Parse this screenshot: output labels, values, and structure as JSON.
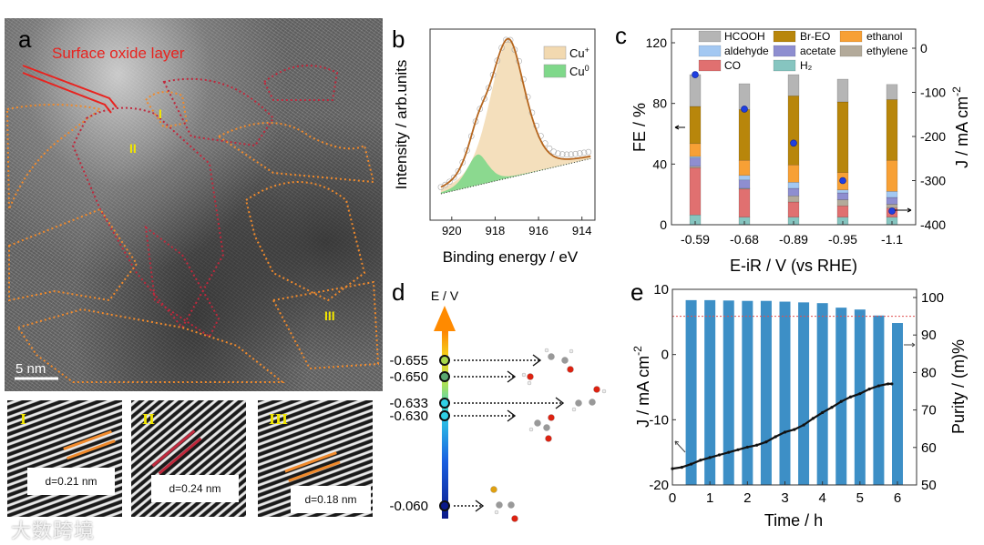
{
  "panel_labels": {
    "a": "a",
    "b": "b",
    "c": "c",
    "d": "d",
    "e": "e"
  },
  "panel_a": {
    "annotation": "Surface oxide layer",
    "regions": [
      "I",
      "II",
      "III"
    ],
    "scale_bar": "5 nm",
    "insets": [
      {
        "label": "I",
        "d_spacing": "d=0.21 nm"
      },
      {
        "label": "II",
        "d_spacing": "d=0.24 nm"
      },
      {
        "label": "III",
        "d_spacing": "d=0.18 nm"
      }
    ],
    "colors": {
      "annotation": "#e8231f",
      "region_outline_orange": "#f08a2c",
      "region_outline_red": "#c0283c",
      "region_label": "#f2e600"
    }
  },
  "watermark": "大数跨境",
  "chart_data": [
    {
      "id": "b",
      "type": "line",
      "xlabel": "Binding energy / eV",
      "ylabel": "Intensity / arb.units",
      "xlim": [
        921,
        913.4
      ],
      "xticks": [
        "920",
        "918",
        "916",
        "914"
      ],
      "xtick_values": [
        920,
        918,
        916,
        914
      ],
      "legend": [
        {
          "name": "Cu⁺",
          "color": "#f2d9b0"
        },
        {
          "name": "Cu⁰",
          "color": "#7fd88a"
        }
      ],
      "legend_sup": [
        "+",
        "0"
      ],
      "legend_base": "Cu",
      "baseline": {
        "x": [
          920.5,
          913.6
        ],
        "y": [
          0,
          0.23
        ]
      },
      "peaks": [
        {
          "name": "Cu+",
          "center": 917.4,
          "fwhm": 2.0,
          "amplitude": 0.9,
          "color": "#f2d9b0"
        },
        {
          "name": "Cu0",
          "center": 918.8,
          "fwhm": 1.2,
          "amplitude": 0.2,
          "color": "#7fd88a"
        }
      ],
      "envelope_color": "#b5651d",
      "ylim": [
        -0.2,
        1.1
      ]
    },
    {
      "id": "c",
      "type": "bar",
      "stacked": true,
      "xlabel": "E-iR / V (vs RHE)",
      "ylabel": "FE / %",
      "ylabel_right": "J / mA cm",
      "ylabel_right_sup": "-2",
      "categories": [
        "-0.59",
        "-0.68",
        "-0.89",
        "-0.95",
        "-1.1"
      ],
      "ylim": [
        0,
        130
      ],
      "yticks": [
        "0",
        "40",
        "80",
        "120"
      ],
      "ytick_values": [
        0,
        40,
        80,
        120
      ],
      "ylim_right": [
        -400,
        45
      ],
      "yticks_right": [
        "0",
        "-100",
        "-200",
        "-300",
        "-400"
      ],
      "ytick_values_right": [
        0,
        -100,
        -200,
        -300,
        -400
      ],
      "series": [
        {
          "name": "H₂",
          "color": "#86c5c0",
          "values": [
            6.5,
            5,
            5,
            5,
            5
          ]
        },
        {
          "name": "CO",
          "color": "#e07070",
          "values": [
            31,
            18.5,
            10,
            7.5,
            6
          ]
        },
        {
          "name": "ethylene",
          "color": "#b3aa9a",
          "values": [
            1,
            0.5,
            4,
            4,
            2.5
          ]
        },
        {
          "name": "acetate",
          "color": "#8e8ed0",
          "values": [
            5.5,
            5.5,
            5,
            4.5,
            4.5
          ]
        },
        {
          "name": "aldehyde",
          "color": "#a3c8f2",
          "values": [
            1,
            3,
            4,
            2,
            4
          ]
        },
        {
          "name": "ethanol",
          "color": "#f7a035",
          "values": [
            8.5,
            10,
            11.5,
            11.5,
            20.5
          ]
        },
        {
          "name": "Br-EO",
          "color": "#b8860b",
          "values": [
            24.5,
            33.5,
            45.5,
            46.5,
            40
          ]
        },
        {
          "name": "HCOOH",
          "color": "#b5b5b5",
          "values": [
            21,
            17,
            14,
            15,
            10
          ]
        }
      ],
      "legend_order": [
        "HCOOH",
        "Br-EO",
        "ethanol",
        "aldehyde",
        "acetate",
        "ethylene",
        "CO",
        "H₂"
      ],
      "current_density": {
        "name": "J",
        "color": "#1f3fe0",
        "values": [
          -60,
          -138,
          -215,
          -300,
          -369
        ]
      }
    },
    {
      "id": "d",
      "type": "scatter",
      "title": "E / V",
      "levels": [
        {
          "label": "-0.655",
          "value": -0.655,
          "product": "aldehyde"
        },
        {
          "label": "-0.650",
          "value": -0.65,
          "product": "water"
        },
        {
          "label": "-0.633",
          "value": -0.633,
          "product": "ethanol"
        },
        {
          "label": "-0.630",
          "value": -0.63,
          "product": "acetic acid"
        },
        {
          "label": "-0.060",
          "value": -0.06,
          "product": "bromoethanol"
        }
      ]
    },
    {
      "id": "e",
      "type": "bar",
      "xlabel": "Time / h",
      "ylabel": "J / mA cm",
      "ylabel_sup": "-2",
      "ylabel_right": "Purity / (m)%",
      "xlim": [
        0,
        6.5
      ],
      "xticks": [
        "0",
        "1",
        "2",
        "3",
        "4",
        "5",
        "6"
      ],
      "xtick_values": [
        0,
        1,
        2,
        3,
        4,
        5,
        6
      ],
      "ylim": [
        -20,
        10
      ],
      "yticks": [
        "-20",
        "-10",
        "0",
        "10"
      ],
      "ytick_values": [
        -20,
        -10,
        0,
        10
      ],
      "ylim_right": [
        50,
        102.2
      ],
      "yticks_right": [
        "50",
        "60",
        "70",
        "80",
        "90",
        "100"
      ],
      "ytick_values_right": [
        50,
        60,
        70,
        80,
        90,
        100
      ],
      "bar_color": "#3d8fc6",
      "purity": {
        "x": [
          0.5,
          1,
          1.5,
          2,
          2.5,
          3,
          3.5,
          4,
          4.5,
          5,
          5.5,
          6
        ],
        "values": [
          99.3,
          99.3,
          99.2,
          99.1,
          99.1,
          98.9,
          98.7,
          98.5,
          97.3,
          96.8,
          95.2,
          93.2
        ]
      },
      "reference_line": {
        "value": 95,
        "color": "#e05050"
      },
      "current": {
        "t": [
          0,
          0.25,
          0.5,
          0.75,
          1,
          1.25,
          1.5,
          1.75,
          2,
          2.25,
          2.5,
          2.75,
          3,
          3.25,
          3.5,
          3.75,
          4,
          4.25,
          4.5,
          4.75,
          5,
          5.25,
          5.5,
          5.75,
          5.85
        ],
        "J": [
          -17.5,
          -17.3,
          -16.8,
          -16.2,
          -15.8,
          -15.4,
          -15,
          -14.6,
          -14.2,
          -13.9,
          -13.4,
          -12.6,
          -11.9,
          -11.5,
          -10.8,
          -9.8,
          -8.9,
          -8.1,
          -7.2,
          -6.5,
          -6,
          -5.3,
          -4.8,
          -4.5,
          -4.5
        ]
      }
    }
  ]
}
